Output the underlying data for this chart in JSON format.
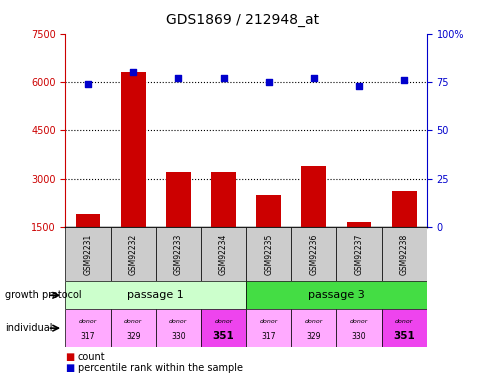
{
  "title": "GDS1869 / 212948_at",
  "samples": [
    "GSM92231",
    "GSM92232",
    "GSM92233",
    "GSM92234",
    "GSM92235",
    "GSM92236",
    "GSM92237",
    "GSM92238"
  ],
  "counts": [
    1900,
    6300,
    3200,
    3200,
    2500,
    3400,
    1650,
    2600
  ],
  "percentiles": [
    74,
    80,
    77,
    77,
    75,
    77,
    73,
    76
  ],
  "ylim_left": [
    1500,
    7500
  ],
  "ylim_right": [
    0,
    100
  ],
  "yticks_left": [
    1500,
    3000,
    4500,
    6000,
    7500
  ],
  "yticks_right": [
    0,
    25,
    50,
    75,
    100
  ],
  "bar_color": "#cc0000",
  "dot_color": "#0000cc",
  "passage1_color": "#ccffcc",
  "passage3_color": "#44dd44",
  "donor_colors": [
    "#ffaaff",
    "#ffaaff",
    "#ffaaff",
    "#ee44ee",
    "#ffaaff",
    "#ffaaff",
    "#ffaaff",
    "#ee44ee"
  ],
  "donors": [
    "317",
    "329",
    "330",
    "351",
    "317",
    "329",
    "330",
    "351"
  ],
  "passages": [
    "passage 1",
    "passage 3"
  ],
  "legend_count_color": "#cc0000",
  "legend_pct_color": "#0000cc",
  "bg_color": "#ffffff",
  "sample_box_color": "#cccccc"
}
